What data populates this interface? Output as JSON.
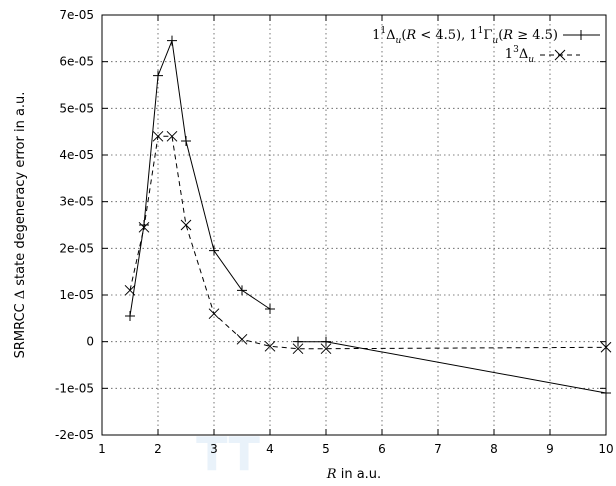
{
  "chart_data": {
    "type": "line",
    "xlabel_italic": "R",
    "xlabel_rest": " in a.u.",
    "ylabel_pre": "SRMRCC ",
    "ylabel_symbol": "Δ",
    "ylabel_post": " state degeneracy error in a.u.",
    "xlim": [
      1,
      10
    ],
    "ylim": [
      -2e-05,
      7e-05
    ],
    "x_ticks": [
      1,
      2,
      3,
      4,
      5,
      6,
      7,
      8,
      9,
      10
    ],
    "x_tick_labels": [
      "1",
      "2",
      "3",
      "4",
      "5",
      "6",
      "7",
      "8",
      "9",
      "10"
    ],
    "y_ticks": [
      -2e-05,
      -1e-05,
      0,
      1e-05,
      2e-05,
      3e-05,
      4e-05,
      5e-05,
      6e-05,
      7e-05
    ],
    "y_tick_labels": [
      "-2e-05",
      "-1e-05",
      "0",
      "1e-05",
      "2e-05",
      "3e-05",
      "4e-05",
      "5e-05",
      "6e-05",
      "7e-05"
    ],
    "grid": true,
    "legend_position": "top-right",
    "series": [
      {
        "name": "1¹Δu(R < 4.5), 1¹Γu(R ≥ 4.5)",
        "line_style": "solid",
        "marker": "plus",
        "color": "#000000",
        "x": [
          1.5,
          1.75,
          2.0,
          2.25,
          2.5,
          3.0,
          3.5,
          4.0,
          null,
          4.5,
          5.0,
          10.0
        ],
        "y": [
          5.5e-06,
          2.5e-05,
          5.7e-05,
          6.45e-05,
          4.3e-05,
          1.95e-05,
          1.1e-05,
          7e-06,
          null,
          0,
          0,
          -1.1e-05
        ]
      },
      {
        "name": "1³Δu",
        "line_style": "dashed",
        "marker": "cross",
        "color": "#000000",
        "x": [
          1.5,
          1.75,
          2.0,
          2.25,
          2.5,
          3.0,
          3.5,
          4.0,
          4.5,
          5.0,
          10.0
        ],
        "y": [
          1.1e-05,
          2.45e-05,
          4.4e-05,
          4.4e-05,
          2.5e-05,
          6e-06,
          5e-07,
          -1e-06,
          -1.5e-06,
          -1.5e-06,
          -1.2e-06
        ]
      }
    ]
  },
  "watermark": "TT"
}
